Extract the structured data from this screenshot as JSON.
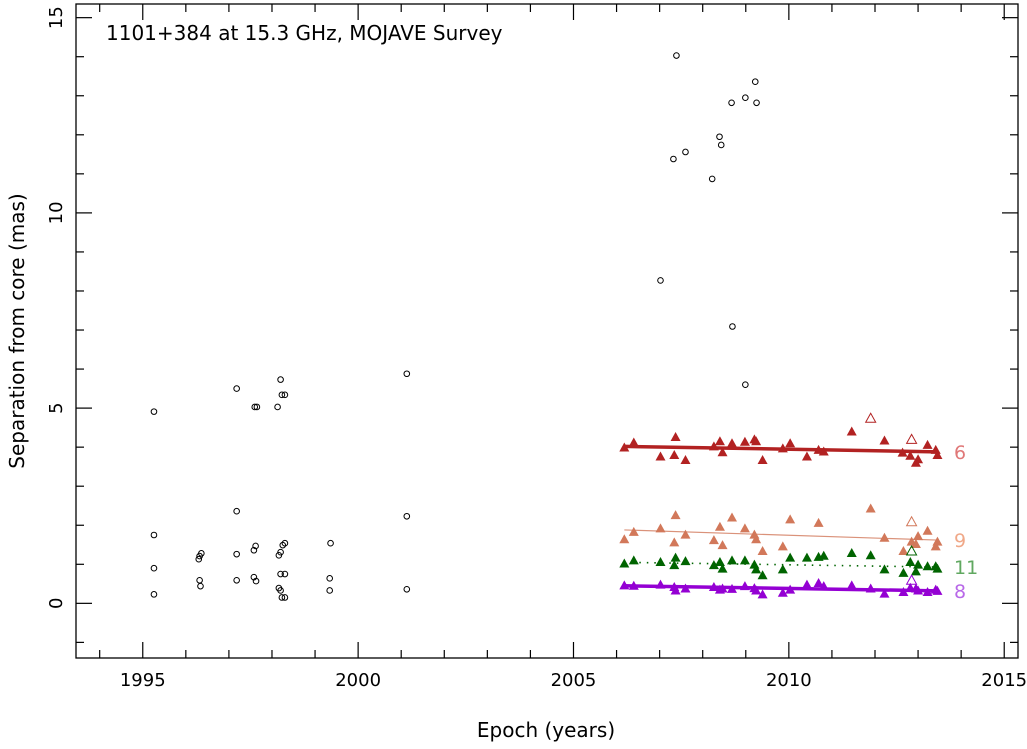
{
  "chart_data": {
    "type": "scatter",
    "title": "1101+384 at 15.3 GHz, MOJAVE Survey",
    "xlabel": "Epoch (years)",
    "ylabel": "Separation from core (mas)",
    "xlim": [
      1993.45,
      2015.32
    ],
    "ylim": [
      -1.4,
      15.35
    ],
    "xticks": [
      1995,
      2000,
      2005,
      2010,
      2015
    ],
    "xtick_labels": [
      "1995",
      "2000",
      "2005",
      "2010",
      "2015"
    ],
    "yticks": [
      0,
      5,
      10,
      15
    ],
    "ytick_labels": [
      "0",
      "5",
      "10",
      "15"
    ],
    "grid": false,
    "unassigned_components": {
      "marker": "open-circle",
      "color": "#000000",
      "points": [
        [
          1995.26,
          4.91
        ],
        [
          1995.26,
          1.75
        ],
        [
          1995.26,
          0.9
        ],
        [
          1995.26,
          0.23
        ],
        [
          1996.32,
          1.21
        ],
        [
          1996.36,
          1.28
        ],
        [
          1996.3,
          1.13
        ],
        [
          1996.32,
          0.59
        ],
        [
          1996.34,
          0.44
        ],
        [
          1997.18,
          5.5
        ],
        [
          1997.18,
          2.36
        ],
        [
          1997.18,
          1.26
        ],
        [
          1997.18,
          0.59
        ],
        [
          1997.6,
          5.03
        ],
        [
          1997.65,
          5.03
        ],
        [
          1997.62,
          1.47
        ],
        [
          1997.58,
          1.36
        ],
        [
          1997.58,
          0.67
        ],
        [
          1997.63,
          0.57
        ],
        [
          1998.2,
          5.73
        ],
        [
          1998.13,
          5.03
        ],
        [
          1998.23,
          5.34
        ],
        [
          1998.3,
          5.34
        ],
        [
          1998.16,
          1.23
        ],
        [
          1998.2,
          1.31
        ],
        [
          1998.25,
          1.49
        ],
        [
          1998.3,
          1.54
        ],
        [
          1998.2,
          0.75
        ],
        [
          1998.3,
          0.75
        ],
        [
          1998.16,
          0.39
        ],
        [
          1998.2,
          0.33
        ],
        [
          1998.23,
          0.15
        ],
        [
          1998.3,
          0.15
        ],
        [
          1999.36,
          1.54
        ],
        [
          1999.34,
          0.64
        ],
        [
          1999.34,
          0.33
        ],
        [
          2001.13,
          5.88
        ],
        [
          2001.13,
          2.23
        ],
        [
          2001.13,
          0.36
        ],
        [
          2007.02,
          8.27
        ],
        [
          2007.39,
          14.03
        ],
        [
          2007.32,
          11.38
        ],
        [
          2007.6,
          11.56
        ],
        [
          2008.22,
          10.87
        ],
        [
          2008.39,
          11.95
        ],
        [
          2008.43,
          11.74
        ],
        [
          2008.69,
          7.09
        ],
        [
          2008.67,
          12.82
        ],
        [
          2008.99,
          12.95
        ],
        [
          2009.22,
          13.36
        ],
        [
          2009.25,
          12.82
        ],
        [
          2008.99,
          5.6
        ]
      ]
    },
    "series": [
      {
        "name": "6",
        "color": "#b22222",
        "label_color": "#e07878",
        "fit_style": "solid-thick",
        "fit": [
          [
            2006.18,
            4.02
          ],
          [
            2013.45,
            3.88
          ]
        ],
        "points": [
          [
            2006.18,
            3.99
          ],
          [
            2006.4,
            4.12
          ],
          [
            2007.02,
            3.76
          ],
          [
            2007.37,
            4.26
          ],
          [
            2007.34,
            3.8
          ],
          [
            2007.6,
            3.67
          ],
          [
            2008.26,
            4.02
          ],
          [
            2008.4,
            4.15
          ],
          [
            2008.46,
            3.87
          ],
          [
            2008.68,
            4.1
          ],
          [
            2008.98,
            4.14
          ],
          [
            2009.2,
            4.2
          ],
          [
            2009.24,
            4.15
          ],
          [
            2009.39,
            3.67
          ],
          [
            2009.86,
            3.97
          ],
          [
            2010.03,
            4.1
          ],
          [
            2010.42,
            3.76
          ],
          [
            2010.69,
            3.93
          ],
          [
            2010.81,
            3.89
          ],
          [
            2011.46,
            4.4
          ],
          [
            2012.22,
            4.17
          ],
          [
            2012.64,
            3.86
          ],
          [
            2012.82,
            3.78
          ],
          [
            2012.95,
            3.6
          ],
          [
            2013.0,
            3.69
          ],
          [
            2013.22,
            4.06
          ],
          [
            2013.41,
            3.93
          ],
          [
            2013.45,
            3.8
          ]
        ],
        "open_points": [
          [
            2011.9,
            4.74
          ],
          [
            2012.85,
            4.2
          ]
        ]
      },
      {
        "name": "9",
        "color": "#d2785a",
        "label_color": "#f0a888",
        "fit_style": "solid-thin",
        "fit": [
          [
            2006.18,
            1.88
          ],
          [
            2013.45,
            1.62
          ]
        ],
        "points": [
          [
            2006.18,
            1.64
          ],
          [
            2006.4,
            1.83
          ],
          [
            2007.02,
            1.92
          ],
          [
            2007.37,
            2.26
          ],
          [
            2007.34,
            1.56
          ],
          [
            2007.6,
            1.76
          ],
          [
            2008.26,
            1.62
          ],
          [
            2008.4,
            1.96
          ],
          [
            2008.46,
            1.49
          ],
          [
            2008.68,
            2.2
          ],
          [
            2008.98,
            1.92
          ],
          [
            2009.2,
            1.76
          ],
          [
            2009.24,
            1.64
          ],
          [
            2009.39,
            1.34
          ],
          [
            2009.86,
            1.46
          ],
          [
            2010.03,
            2.15
          ],
          [
            2010.69,
            2.06
          ],
          [
            2011.9,
            2.43
          ],
          [
            2012.22,
            1.68
          ],
          [
            2012.66,
            1.34
          ],
          [
            2012.85,
            1.58
          ],
          [
            2012.95,
            1.52
          ],
          [
            2013.0,
            1.72
          ],
          [
            2013.22,
            1.86
          ],
          [
            2013.41,
            1.46
          ],
          [
            2013.45,
            1.58
          ]
        ],
        "open_points": [
          [
            2012.85,
            2.09
          ]
        ]
      },
      {
        "name": "11",
        "color": "#006400",
        "label_color": "#60a860",
        "fit_style": "dotted",
        "fit": [
          [
            2006.18,
            1.05
          ],
          [
            2013.45,
            0.93
          ]
        ],
        "points": [
          [
            2006.18,
            1.02
          ],
          [
            2006.4,
            1.1
          ],
          [
            2007.02,
            1.06
          ],
          [
            2007.37,
            1.17
          ],
          [
            2007.34,
            0.98
          ],
          [
            2007.6,
            1.08
          ],
          [
            2008.26,
            0.98
          ],
          [
            2008.4,
            1.06
          ],
          [
            2008.46,
            0.89
          ],
          [
            2008.68,
            1.1
          ],
          [
            2008.98,
            1.1
          ],
          [
            2009.2,
            0.99
          ],
          [
            2009.24,
            0.87
          ],
          [
            2009.39,
            0.72
          ],
          [
            2009.86,
            0.87
          ],
          [
            2010.03,
            1.17
          ],
          [
            2010.42,
            1.17
          ],
          [
            2010.69,
            1.19
          ],
          [
            2010.81,
            1.22
          ],
          [
            2011.46,
            1.29
          ],
          [
            2011.9,
            1.23
          ],
          [
            2012.22,
            0.87
          ],
          [
            2012.66,
            0.78
          ],
          [
            2012.82,
            1.06
          ],
          [
            2012.95,
            0.82
          ],
          [
            2013.0,
            0.99
          ],
          [
            2013.22,
            0.95
          ],
          [
            2013.41,
            0.95
          ],
          [
            2013.45,
            0.89
          ]
        ],
        "open_points": [
          [
            2012.85,
            1.34
          ]
        ]
      },
      {
        "name": "8",
        "color": "#9400d3",
        "label_color": "#b868e8",
        "fit_style": "solid-thick",
        "fit": [
          [
            2006.18,
            0.45
          ],
          [
            2013.45,
            0.32
          ]
        ],
        "points": [
          [
            2006.18,
            0.46
          ],
          [
            2006.4,
            0.45
          ],
          [
            2007.02,
            0.48
          ],
          [
            2007.37,
            0.33
          ],
          [
            2007.34,
            0.42
          ],
          [
            2007.6,
            0.38
          ],
          [
            2008.26,
            0.42
          ],
          [
            2008.4,
            0.35
          ],
          [
            2008.46,
            0.38
          ],
          [
            2008.68,
            0.37
          ],
          [
            2008.98,
            0.44
          ],
          [
            2009.2,
            0.39
          ],
          [
            2009.24,
            0.33
          ],
          [
            2009.39,
            0.23
          ],
          [
            2009.86,
            0.27
          ],
          [
            2010.03,
            0.35
          ],
          [
            2010.42,
            0.48
          ],
          [
            2010.69,
            0.52
          ],
          [
            2010.81,
            0.44
          ],
          [
            2011.46,
            0.46
          ],
          [
            2011.9,
            0.38
          ],
          [
            2012.22,
            0.25
          ],
          [
            2012.66,
            0.29
          ],
          [
            2012.82,
            0.4
          ],
          [
            2012.95,
            0.38
          ],
          [
            2013.0,
            0.33
          ],
          [
            2013.22,
            0.29
          ],
          [
            2013.41,
            0.35
          ],
          [
            2013.45,
            0.32
          ]
        ],
        "open_points": [
          [
            2012.85,
            0.59
          ]
        ]
      }
    ]
  }
}
